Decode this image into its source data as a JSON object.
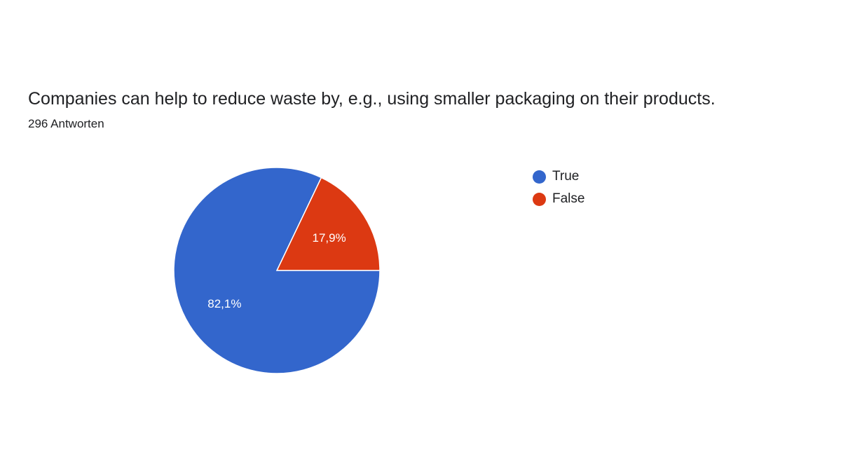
{
  "question": {
    "title": "Companies can help to reduce waste by, e.g., using smaller packaging on their products.",
    "responses": "296 Antworten"
  },
  "chart_data": {
    "type": "pie",
    "categories": [
      "True",
      "False"
    ],
    "values": [
      82.1,
      17.9
    ],
    "labels": [
      "82,1%",
      "17,9%"
    ],
    "colors": [
      "#3366CC",
      "#DC3912"
    ],
    "legend": "right"
  }
}
